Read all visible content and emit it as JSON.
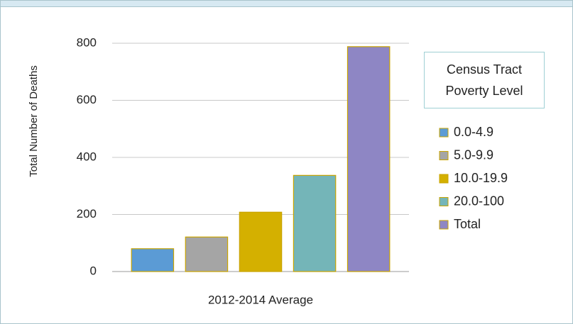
{
  "chart_data": {
    "type": "bar",
    "y_label": "Total Number of Deaths",
    "legend_title": "Census Tract Poverty Level",
    "categories": [
      "2012-2014 Average"
    ],
    "series": [
      {
        "name": "0.0-4.9",
        "color": "#5b9bd5",
        "values": [
          80
        ]
      },
      {
        "name": "5.0-9.9",
        "color": "#a5a5a5",
        "values": [
          121
        ]
      },
      {
        "name": "10.0-19.9",
        "color": "#d4b000",
        "values": [
          208
        ]
      },
      {
        "name": "20.0-100",
        "color": "#74b5b8",
        "values": [
          337
        ]
      },
      {
        "name": "Total",
        "color": "#8e86c4",
        "values": [
          788
        ]
      }
    ],
    "ylim": [
      0,
      800
    ],
    "yticks": [
      0,
      200,
      400,
      600,
      800
    ],
    "grid": true,
    "legend": "right"
  }
}
